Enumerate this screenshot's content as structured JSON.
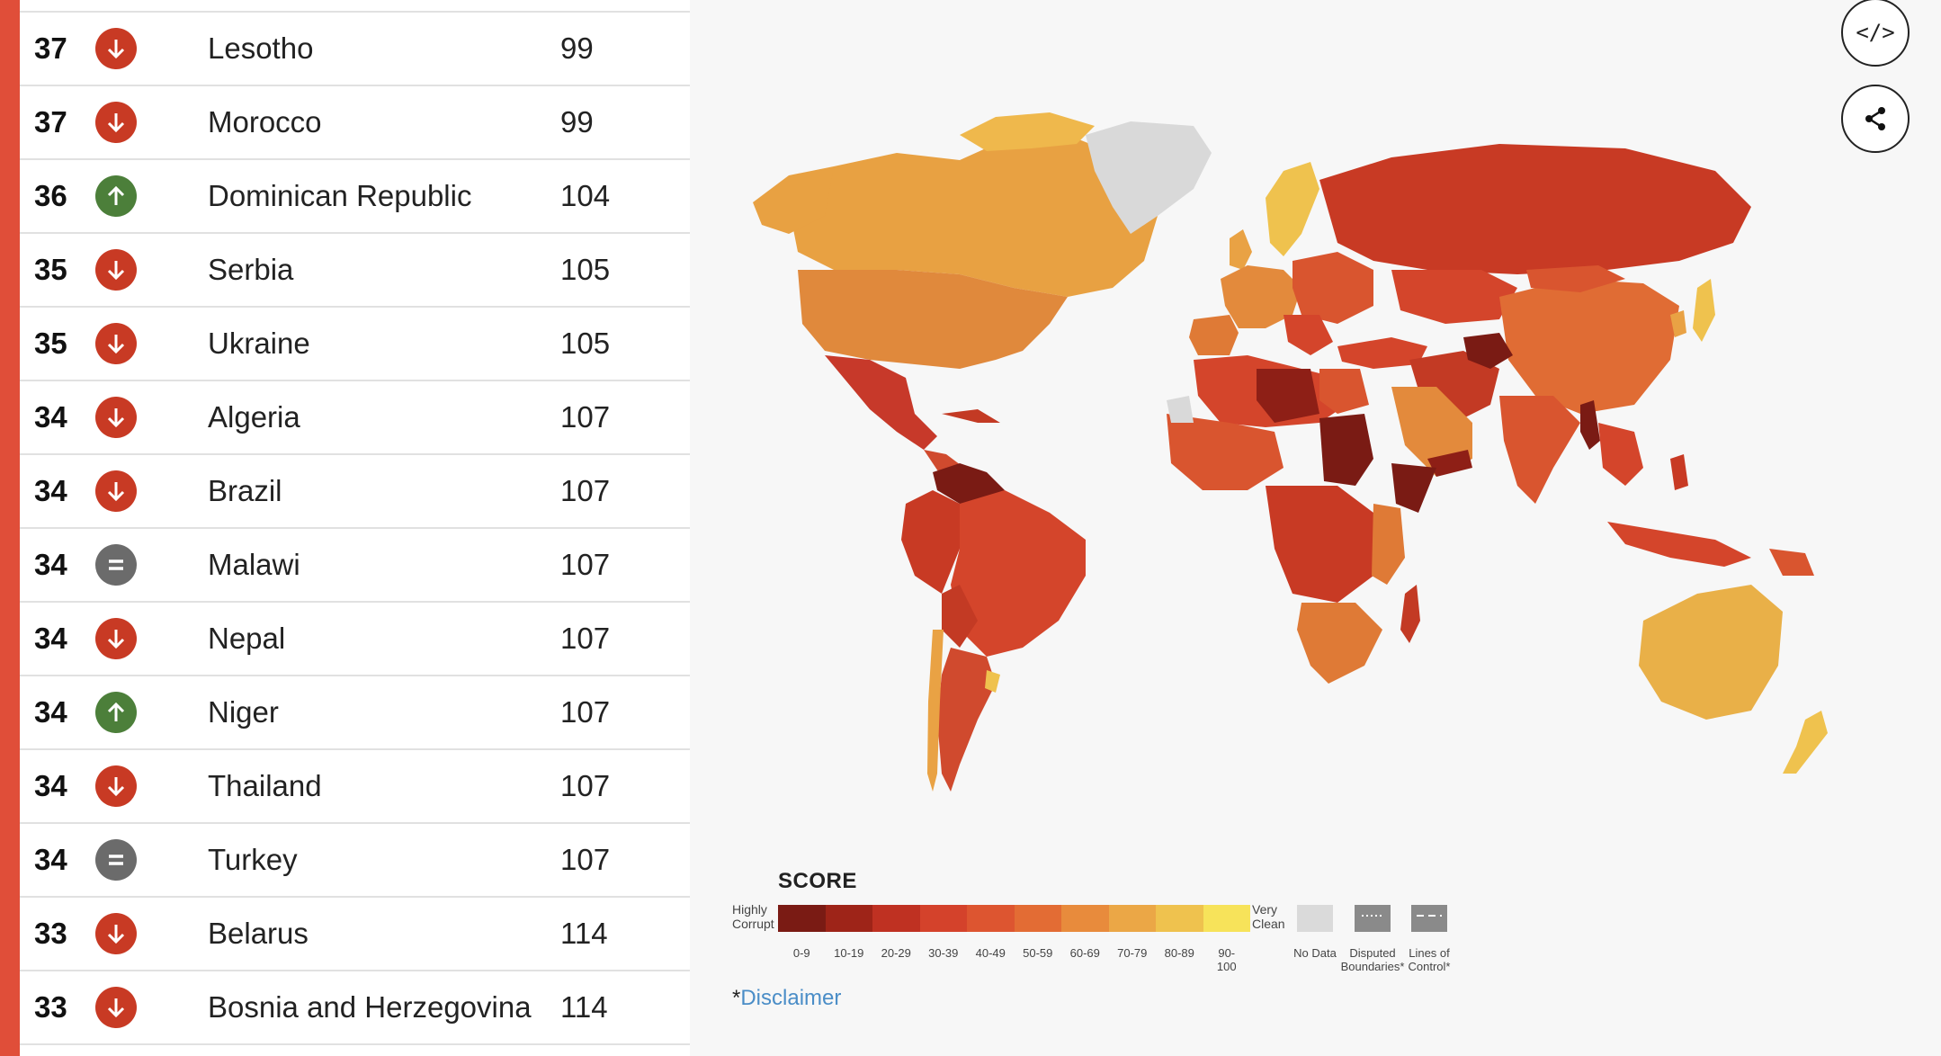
{
  "rows": [
    {
      "score": "37",
      "trend": "down",
      "country": "Lesotho",
      "rank": "99"
    },
    {
      "score": "37",
      "trend": "down",
      "country": "Morocco",
      "rank": "99"
    },
    {
      "score": "36",
      "trend": "up",
      "country": "Dominican Republic",
      "rank": "104"
    },
    {
      "score": "35",
      "trend": "down",
      "country": "Serbia",
      "rank": "105"
    },
    {
      "score": "35",
      "trend": "down",
      "country": "Ukraine",
      "rank": "105"
    },
    {
      "score": "34",
      "trend": "down",
      "country": "Algeria",
      "rank": "107"
    },
    {
      "score": "34",
      "trend": "down",
      "country": "Brazil",
      "rank": "107"
    },
    {
      "score": "34",
      "trend": "same",
      "country": "Malawi",
      "rank": "107"
    },
    {
      "score": "34",
      "trend": "down",
      "country": "Nepal",
      "rank": "107"
    },
    {
      "score": "34",
      "trend": "up",
      "country": "Niger",
      "rank": "107"
    },
    {
      "score": "34",
      "trend": "down",
      "country": "Thailand",
      "rank": "107"
    },
    {
      "score": "34",
      "trend": "same",
      "country": "Turkey",
      "rank": "107"
    },
    {
      "score": "33",
      "trend": "down",
      "country": "Belarus",
      "rank": "114"
    },
    {
      "score": "33",
      "trend": "down",
      "country": "Bosnia and Herzegovina",
      "rank": "114"
    }
  ],
  "toolbar": {
    "embed_label": "</>"
  },
  "legend": {
    "title": "SCORE",
    "low_label_1": "Highly",
    "low_label_2": "Corrupt",
    "high_label_1": "Very",
    "high_label_2": "Clean",
    "bins": [
      "0-9",
      "10-19",
      "20-29",
      "30-39",
      "40-49",
      "50-59",
      "60-69",
      "70-79",
      "80-89",
      "90-100"
    ],
    "bin_colors": [
      "#7a1b14",
      "#9e2418",
      "#bf3122",
      "#d4422b",
      "#dd5530",
      "#e36c34",
      "#e88b3c",
      "#eba746",
      "#efc24e",
      "#f7e35a"
    ],
    "no_data": "No Data",
    "disputed_1": "Disputed",
    "disputed_2": "Boundaries*",
    "lines_1": "Lines of",
    "lines_2": "Control*"
  },
  "disclaimer": {
    "star": "*",
    "link": "Disclaimer"
  },
  "colors": {
    "accent": "#e04e39",
    "down": "#c83a24",
    "up": "#4c7f3a",
    "same": "#6b6b6b",
    "no_data": "#d9d9d9"
  }
}
